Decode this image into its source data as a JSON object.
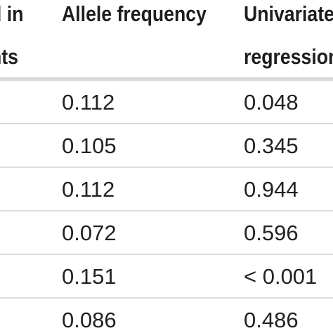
{
  "table": {
    "columns": [
      {
        "lines": [
          "d in",
          "nts"
        ]
      },
      {
        "lines": [
          "Allele frequency"
        ]
      },
      {
        "lines": [
          "Univariate",
          "regression"
        ]
      }
    ],
    "rows": [
      {
        "allele_frequency": "0.112",
        "univariate_regression": "0.048"
      },
      {
        "allele_frequency": "0.105",
        "univariate_regression": "0.345"
      },
      {
        "allele_frequency": "0.112",
        "univariate_regression": "0.944"
      },
      {
        "allele_frequency": "0.072",
        "univariate_regression": "0.596"
      },
      {
        "allele_frequency": "0.151",
        "univariate_regression": "< 0.001"
      },
      {
        "allele_frequency": "0.086",
        "univariate_regression": "0.486"
      }
    ]
  }
}
